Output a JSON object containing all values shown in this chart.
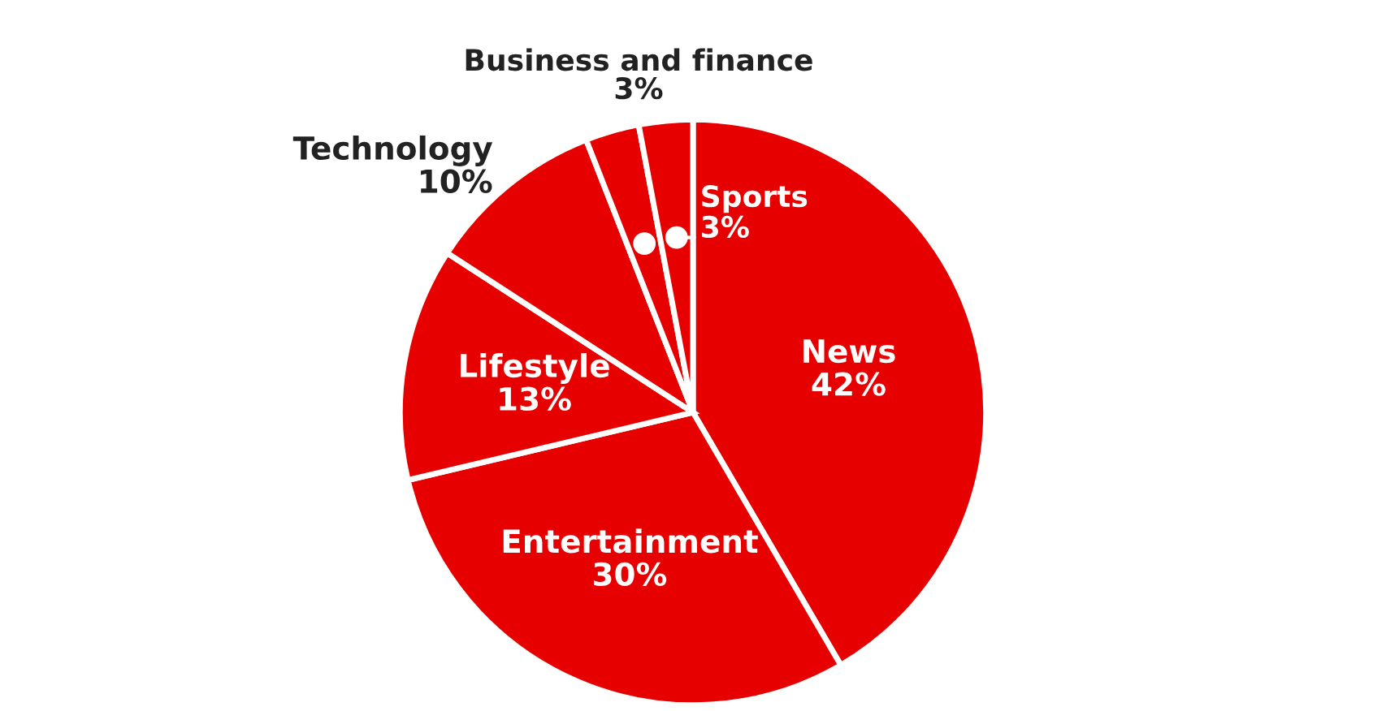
{
  "chart_data": {
    "type": "pie",
    "categories": [
      "News",
      "Entertainment",
      "Lifestyle",
      "Technology",
      "Business and finance",
      "Sports"
    ],
    "values": [
      42,
      30,
      13,
      10,
      3,
      3
    ],
    "value_labels": [
      "42%",
      "30%",
      "13%",
      "10%",
      "3%",
      "3%"
    ],
    "colors": [
      "#e60000",
      "#e60000",
      "#e60000",
      "#e60000",
      "#e60000",
      "#e60000"
    ]
  }
}
